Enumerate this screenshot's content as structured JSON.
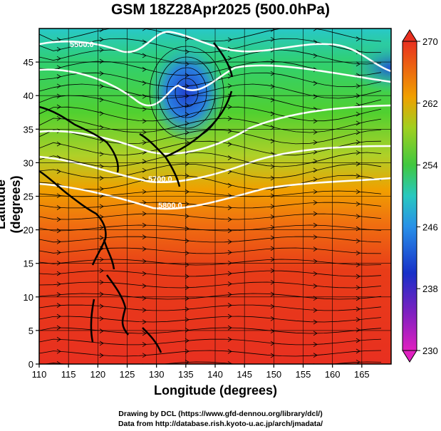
{
  "title": "GSM 18Z28Apr2025 (500.0hPa)",
  "xlabel": "Longitude (degrees)",
  "ylabel": "Latitude (degrees)",
  "credits": [
    "Drawing by DCL (https://www.gfd-dennou.org/library/dcl/)",
    "Data from http://database.rish.kyoto-u.ac.jp/arch/jmadata/"
  ],
  "chart_data": {
    "type": "heatmap",
    "x_axis": {
      "range": [
        110,
        170
      ],
      "ticks": [
        110,
        115,
        120,
        125,
        130,
        135,
        140,
        145,
        150,
        155,
        160,
        165
      ]
    },
    "y_axis": {
      "range": [
        0,
        50
      ],
      "ticks": [
        0,
        5,
        10,
        15,
        20,
        25,
        30,
        35,
        40,
        45
      ]
    },
    "colorbar": {
      "range": [
        230,
        270
      ],
      "ticks": [
        230,
        238,
        246,
        254,
        262,
        270
      ]
    },
    "contour_labels": [
      "5500.0",
      "5700.0",
      "5800.0"
    ],
    "overlays": [
      "temperature shading",
      "geopotential height contours",
      "wind streamlines",
      "coastlines"
    ],
    "colors": {
      "cold": "#c000c0",
      "cool": "#1e50dc",
      "mid": "#22c8c0",
      "mild": "#3cc83c",
      "warm": "#f0a000",
      "hot": "#e02818"
    }
  }
}
